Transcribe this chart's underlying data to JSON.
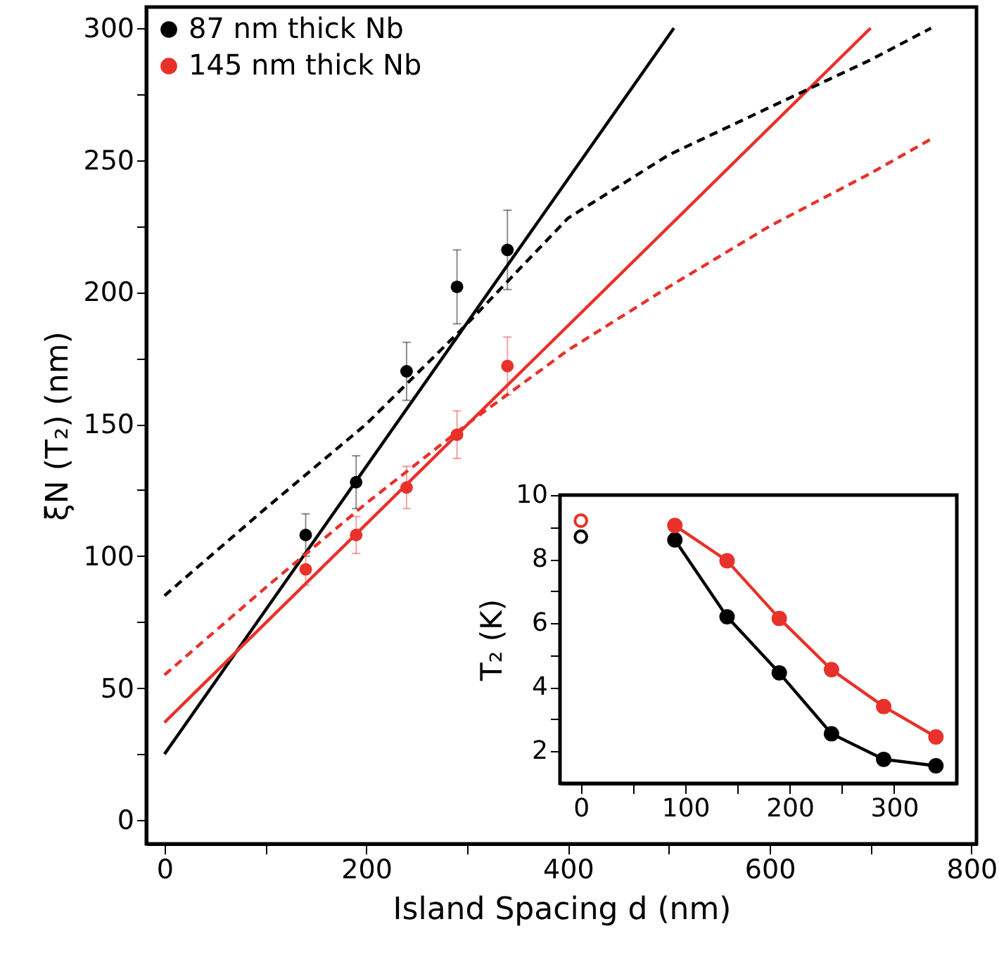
{
  "chart_data": [
    {
      "type": "scatter",
      "xlabel": "Island Spacing d (nm)",
      "ylabel": "ξN (T₂) (nm)",
      "xlim": [
        -18,
        805
      ],
      "ylim": [
        -9,
        308
      ],
      "xticks": [
        0,
        {
          "value": 100,
          "label": null
        },
        200,
        {
          "value": 300,
          "label": null
        },
        400,
        {
          "value": 500,
          "label": null
        },
        600,
        {
          "value": 700,
          "label": null
        },
        800
      ],
      "yticks": [
        0,
        {
          "value": 25,
          "label": null
        },
        50,
        {
          "value": 75,
          "label": null
        },
        100,
        {
          "value": 125,
          "label": null
        },
        150,
        {
          "value": 175,
          "label": null
        },
        200,
        {
          "value": 225,
          "label": null
        },
        250,
        {
          "value": 275,
          "label": null
        },
        300
      ],
      "grid": false,
      "legend": "top left",
      "series": [
        {
          "name": "87 nm thick Nb",
          "marker": "circle",
          "color": "#000000",
          "x": [
            140,
            190,
            240,
            290,
            340
          ],
          "values": [
            108,
            128,
            170,
            202,
            216
          ],
          "errors": [
            8,
            10,
            11,
            14,
            15
          ]
        },
        {
          "name": "145 nm thick Nb",
          "marker": "circle",
          "color": "#e8312a",
          "x": [
            140,
            190,
            240,
            290,
            340
          ],
          "values": [
            95,
            108,
            126,
            146,
            172
          ],
          "errors": [
            6,
            7,
            8,
            9,
            11
          ]
        },
        {
          "type": "line",
          "marker": "none",
          "color": "#000000",
          "line_style": "solid",
          "x": [
            0,
            505
          ],
          "values": [
            25,
            300
          ]
        },
        {
          "type": "line",
          "marker": "none",
          "color": "#e8312a",
          "line_style": "solid",
          "x": [
            0,
            700
          ],
          "values": [
            37,
            300
          ]
        },
        {
          "type": "line",
          "marker": "none",
          "color": "#000000",
          "line_style": "dashed",
          "x": [
            0,
            100,
            200,
            300,
            400,
            500,
            600,
            700,
            760
          ],
          "values": [
            85,
            118,
            150,
            188,
            228,
            252,
            270,
            288,
            300
          ]
        },
        {
          "type": "line",
          "marker": "none",
          "color": "#e8312a",
          "line_style": "dashed",
          "x": [
            0,
            100,
            200,
            300,
            400,
            500,
            600,
            700,
            760
          ],
          "values": [
            55,
            88,
            120,
            150,
            178,
            202,
            225,
            245,
            258
          ]
        }
      ]
    },
    {
      "type": "line",
      "ylabel": "T₂ (K)",
      "xlim": [
        -20,
        360
      ],
      "ylim": [
        1,
        10
      ],
      "xticks": [
        0,
        {
          "value": 50,
          "label": null
        },
        100,
        {
          "value": 150,
          "label": null
        },
        200,
        {
          "value": 250,
          "label": null
        },
        300
      ],
      "yticks": [
        2,
        {
          "value": 3,
          "label": null
        },
        4,
        {
          "value": 5,
          "label": null
        },
        6,
        {
          "value": 7,
          "label": null
        },
        8,
        {
          "value": 9,
          "label": null
        },
        10
      ],
      "grid": false,
      "series": [
        {
          "marker": "circle",
          "line_style": "solid",
          "color": "#000000",
          "x": [
            90,
            140,
            190,
            240,
            290,
            340
          ],
          "values": [
            8.6,
            6.2,
            4.45,
            2.55,
            1.75,
            1.55
          ]
        },
        {
          "marker": "circle",
          "line_style": "solid",
          "color": "#e8312a",
          "x": [
            90,
            140,
            190,
            240,
            290,
            340
          ],
          "values": [
            9.05,
            7.95,
            6.15,
            4.55,
            3.4,
            2.45
          ]
        },
        {
          "type": "scatter",
          "marker": "open circle",
          "color": "#000000",
          "x": [
            0
          ],
          "values": [
            8.7
          ]
        },
        {
          "type": "scatter",
          "marker": "open circle",
          "color": "#e8312a",
          "x": [
            0
          ],
          "values": [
            9.2
          ]
        }
      ]
    }
  ]
}
